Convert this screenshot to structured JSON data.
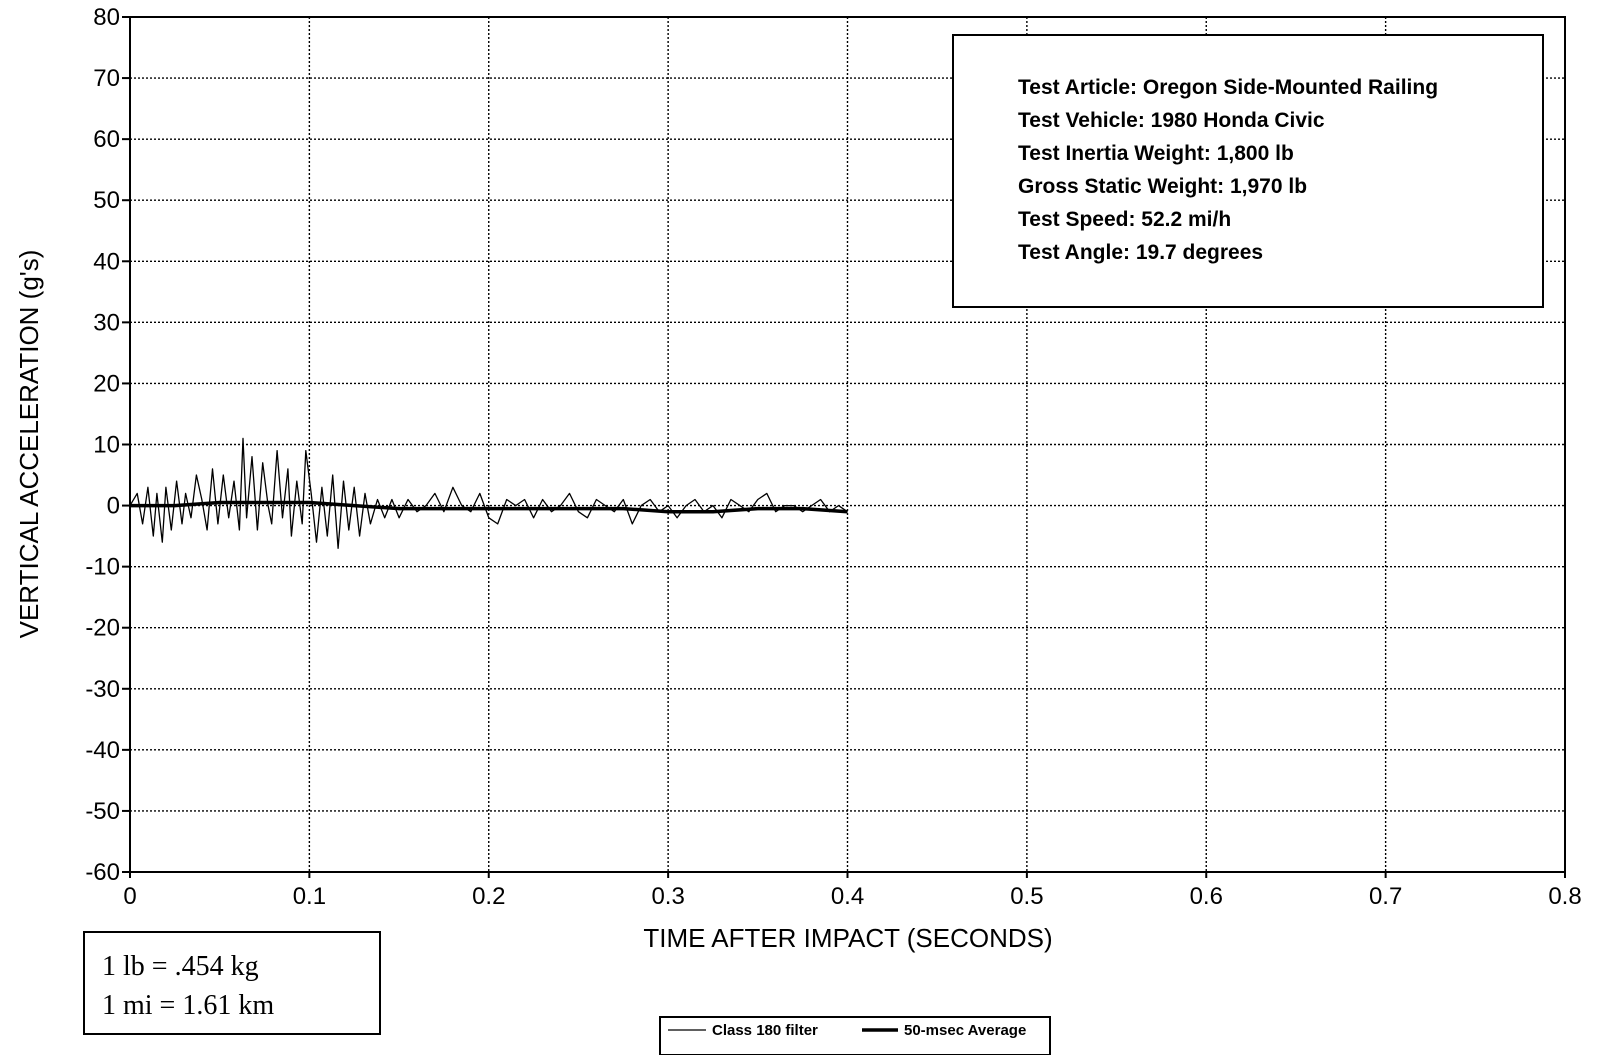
{
  "chart_data": {
    "type": "line",
    "title": "",
    "xlabel": "TIME AFTER IMPACT (SECONDS)",
    "ylabel": "VERTICAL ACCELERATION (g's)",
    "xlim": [
      0,
      0.8
    ],
    "ylim": [
      -60,
      80
    ],
    "x_ticks": [
      "0",
      "0.1",
      "0.2",
      "0.3",
      "0.4",
      "0.5",
      "0.6",
      "0.7",
      "0.8"
    ],
    "y_ticks": [
      "80",
      "70",
      "60",
      "50",
      "40",
      "30",
      "20",
      "10",
      "0",
      "-10",
      "-20",
      "-30",
      "-40",
      "-50",
      "-60"
    ],
    "grid": true,
    "legend_position": "bottom-center",
    "series": [
      {
        "name": "Class 180 filter",
        "line_width": "thin",
        "x": [
          0.0,
          0.004,
          0.007,
          0.01,
          0.013,
          0.015,
          0.018,
          0.02,
          0.023,
          0.026,
          0.029,
          0.031,
          0.034,
          0.037,
          0.04,
          0.043,
          0.046,
          0.049,
          0.052,
          0.055,
          0.058,
          0.061,
          0.063,
          0.065,
          0.068,
          0.071,
          0.074,
          0.077,
          0.079,
          0.082,
          0.085,
          0.088,
          0.09,
          0.093,
          0.096,
          0.098,
          0.101,
          0.104,
          0.107,
          0.11,
          0.113,
          0.116,
          0.119,
          0.122,
          0.125,
          0.128,
          0.131,
          0.134,
          0.138,
          0.142,
          0.146,
          0.15,
          0.155,
          0.16,
          0.165,
          0.17,
          0.175,
          0.18,
          0.185,
          0.19,
          0.195,
          0.2,
          0.205,
          0.21,
          0.215,
          0.22,
          0.225,
          0.23,
          0.235,
          0.24,
          0.245,
          0.25,
          0.255,
          0.26,
          0.265,
          0.27,
          0.275,
          0.28,
          0.285,
          0.29,
          0.295,
          0.3,
          0.305,
          0.31,
          0.315,
          0.32,
          0.325,
          0.33,
          0.335,
          0.34,
          0.345,
          0.35,
          0.355,
          0.36,
          0.365,
          0.37,
          0.375,
          0.38,
          0.385,
          0.39,
          0.395,
          0.4
        ],
        "y": [
          0,
          2,
          -3,
          3,
          -5,
          2,
          -6,
          3,
          -4,
          4,
          -3,
          2,
          -2,
          5,
          1,
          -4,
          6,
          -3,
          5,
          -2,
          4,
          -4,
          11,
          -2,
          8,
          -4,
          7,
          0,
          -3,
          9,
          -2,
          6,
          -5,
          4,
          -3,
          9,
          2,
          -6,
          3,
          -5,
          5,
          -7,
          4,
          -4,
          3,
          -5,
          2,
          -3,
          1,
          -2,
          1,
          -2,
          1,
          -1,
          0,
          2,
          -1,
          3,
          0,
          -1,
          2,
          -2,
          -3,
          1,
          0,
          1,
          -2,
          1,
          -1,
          0,
          2,
          -1,
          -2,
          1,
          0,
          -1,
          1,
          -3,
          0,
          1,
          -1,
          0,
          -2,
          0,
          1,
          -1,
          0,
          -2,
          1,
          0,
          -1,
          1,
          2,
          -1,
          0,
          0,
          -1,
          0,
          1,
          -1,
          0,
          -1
        ]
      },
      {
        "name": "50-msec Average",
        "line_width": "thick",
        "x": [
          0.0,
          0.025,
          0.05,
          0.075,
          0.1,
          0.125,
          0.15,
          0.175,
          0.2,
          0.225,
          0.25,
          0.275,
          0.3,
          0.325,
          0.35,
          0.375,
          0.4
        ],
        "y": [
          0,
          0,
          0.5,
          0.5,
          0.5,
          0,
          -0.5,
          -0.5,
          -0.5,
          -0.5,
          -0.5,
          -0.5,
          -1,
          -1,
          -0.5,
          -0.5,
          -1
        ]
      }
    ]
  },
  "info_box": {
    "lines": [
      "Test Article:  Oregon Side-Mounted Railing",
      "Test Vehicle:  1980 Honda Civic",
      "Test Inertia Weight:  1,800 lb",
      "Gross Static Weight:  1,970 lb",
      "Test Speed:  52.2 mi/h",
      "Test Angle:  19.7 degrees"
    ]
  },
  "conversion_box": {
    "lines": [
      "1 lb  =  .454 kg",
      "1 mi  =  1.61 km"
    ]
  },
  "legend": {
    "items": [
      "Class 180 filter",
      "50-msec Average"
    ]
  }
}
